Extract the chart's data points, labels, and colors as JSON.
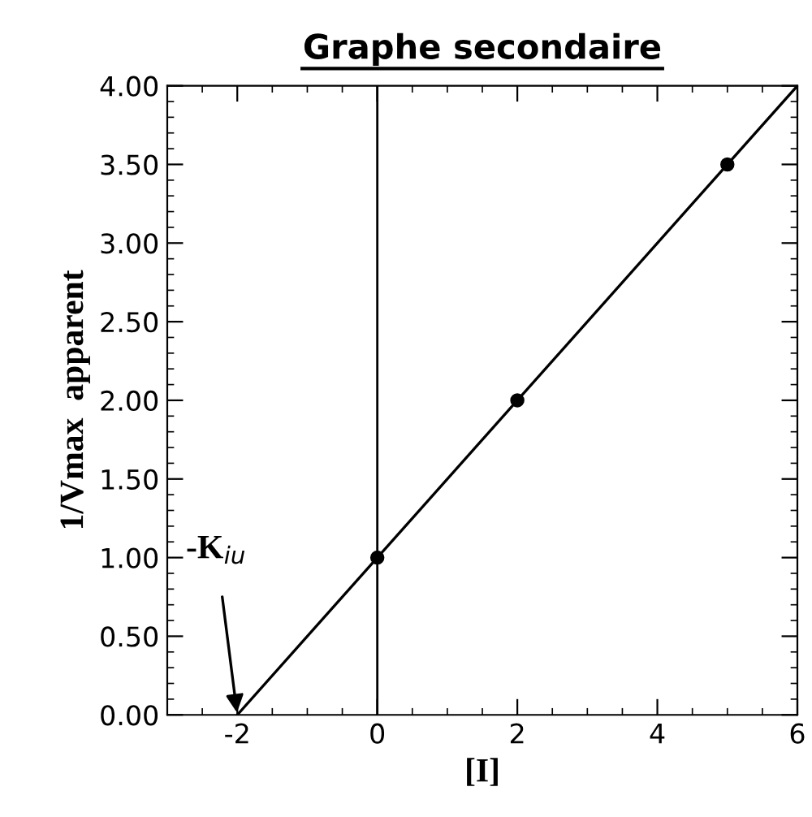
{
  "chart_data": {
    "type": "scatter",
    "title": "Graphe secondaire",
    "xlabel": "[I]",
    "ylabel": "1/Vmax  apparent",
    "series": [
      {
        "color": "#000000",
        "x": [
          0,
          2,
          5
        ],
        "values": [
          1.0,
          2.0,
          3.5
        ],
        "marker": "circle"
      },
      {
        "type": "line",
        "color": "#000000",
        "x": [
          -2,
          6
        ],
        "values": [
          0.0,
          4.0
        ],
        "marker": "none",
        "line_style": "solid"
      }
    ],
    "ref_lines": [
      {
        "axis": "x",
        "value": 0,
        "color": "#000000"
      }
    ],
    "annotations": [
      {
        "text": "-K$_{iu}$",
        "x": -2,
        "y": 0
      }
    ],
    "xlim": [
      -3,
      6
    ],
    "xticks": [
      -2,
      0,
      2,
      4,
      6
    ],
    "ylim": [
      0,
      4
    ],
    "yticks": [
      {
        "value": 0,
        "label": "0.00"
      },
      {
        "value": 0.5,
        "label": "0.50"
      },
      {
        "value": 1,
        "label": "1.00"
      },
      {
        "value": 1.5,
        "label": "1.50"
      },
      {
        "value": 2,
        "label": "2.00"
      },
      {
        "value": 2.5,
        "label": "2.50"
      },
      {
        "value": 3,
        "label": "3.00"
      },
      {
        "value": 3.5,
        "label": "3.50"
      },
      {
        "value": 4,
        "label": "4.00"
      }
    ],
    "grid": false,
    "legend": false
  }
}
